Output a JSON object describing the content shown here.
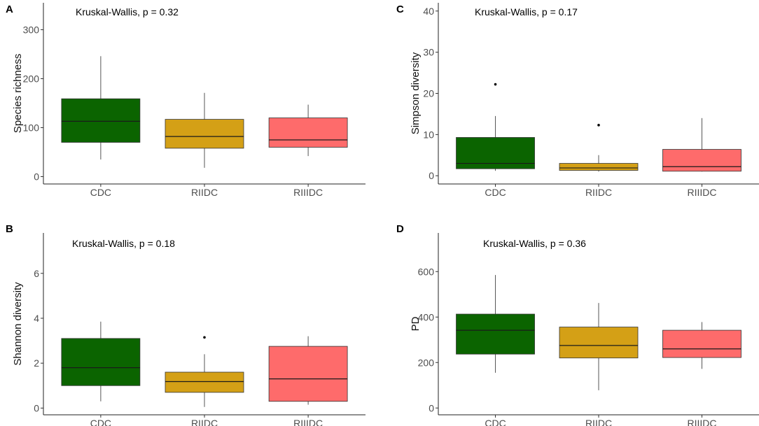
{
  "chart_data": [
    {
      "panel_label": "A",
      "type": "box",
      "annotation": "Kruskal-Wallis, p = 0.32",
      "ylabel": "Species richness",
      "xlabel": "",
      "ylim": [
        -15,
        355
      ],
      "yticks": [
        0,
        100,
        200,
        300
      ],
      "categories": [
        "CDC",
        "RIIDC",
        "RIIIDC"
      ],
      "colors": [
        "#0b6400",
        "#d4a016",
        "#fe6b6b"
      ],
      "boxes": [
        {
          "group": "CDC",
          "whisker_low": 35,
          "q1": 70,
          "median": 113,
          "q3": 159,
          "whisker_high": 246,
          "outliers": []
        },
        {
          "group": "RIIDC",
          "whisker_low": 18,
          "q1": 58,
          "median": 82,
          "q3": 117,
          "whisker_high": 171,
          "outliers": []
        },
        {
          "group": "RIIIDC",
          "whisker_low": 42,
          "q1": 60,
          "median": 75,
          "q3": 120,
          "whisker_high": 147,
          "outliers": []
        }
      ]
    },
    {
      "panel_label": "C",
      "type": "box",
      "annotation": "Kruskal-Wallis, p = 0.17",
      "ylabel": "Simpson diversity",
      "xlabel": "",
      "ylim": [
        -2,
        42
      ],
      "yticks": [
        0,
        10,
        20,
        30,
        40
      ],
      "categories": [
        "CDC",
        "RIIDC",
        "RIIIDC"
      ],
      "colors": [
        "#0b6400",
        "#d4a016",
        "#fe6b6b"
      ],
      "boxes": [
        {
          "group": "CDC",
          "whisker_low": 1.2,
          "q1": 1.7,
          "median": 3.0,
          "q3": 9.3,
          "whisker_high": 14.5,
          "outliers": [
            22.2
          ]
        },
        {
          "group": "RIIDC",
          "whisker_low": 1.0,
          "q1": 1.3,
          "median": 1.9,
          "q3": 3.0,
          "whisker_high": 5.0,
          "outliers": [
            12.3
          ]
        },
        {
          "group": "RIIIDC",
          "whisker_low": 1.0,
          "q1": 1.1,
          "median": 2.2,
          "q3": 6.4,
          "whisker_high": 14.0,
          "outliers": []
        }
      ]
    },
    {
      "panel_label": "B",
      "type": "box",
      "annotation": "Kruskal-Wallis, p = 0.18",
      "ylabel": "Shannon diversity",
      "xlabel": "",
      "ylim": [
        -0.3,
        7.8
      ],
      "yticks": [
        0,
        2,
        4,
        6
      ],
      "categories": [
        "CDC",
        "RIIDC",
        "RIIIDC"
      ],
      "colors": [
        "#0b6400",
        "#d4a016",
        "#fe6b6b"
      ],
      "boxes": [
        {
          "group": "CDC",
          "whisker_low": 0.3,
          "q1": 1.0,
          "median": 1.8,
          "q3": 3.1,
          "whisker_high": 3.85,
          "outliers": []
        },
        {
          "group": "RIIDC",
          "whisker_low": 0.05,
          "q1": 0.7,
          "median": 1.18,
          "q3": 1.6,
          "whisker_high": 2.4,
          "outliers": [
            3.15
          ]
        },
        {
          "group": "RIIIDC",
          "whisker_low": 0.15,
          "q1": 0.3,
          "median": 1.3,
          "q3": 2.75,
          "whisker_high": 3.2,
          "outliers": []
        }
      ]
    },
    {
      "panel_label": "D",
      "type": "box",
      "annotation": "Kruskal-Wallis, p = 0.36",
      "ylabel": "PD",
      "xlabel": "",
      "ylim": [
        -30,
        770
      ],
      "yticks": [
        0,
        200,
        400,
        600
      ],
      "categories": [
        "CDC",
        "RIIDC",
        "RIIIDC"
      ],
      "colors": [
        "#0b6400",
        "#d4a016",
        "#fe6b6b"
      ],
      "boxes": [
        {
          "group": "CDC",
          "whisker_low": 155,
          "q1": 237,
          "median": 342,
          "q3": 413,
          "whisker_high": 585,
          "outliers": []
        },
        {
          "group": "RIIDC",
          "whisker_low": 78,
          "q1": 220,
          "median": 275,
          "q3": 356,
          "whisker_high": 462,
          "outliers": []
        },
        {
          "group": "RIIIDC",
          "whisker_low": 172,
          "q1": 222,
          "median": 260,
          "q3": 342,
          "whisker_high": 378,
          "outliers": []
        }
      ]
    }
  ]
}
